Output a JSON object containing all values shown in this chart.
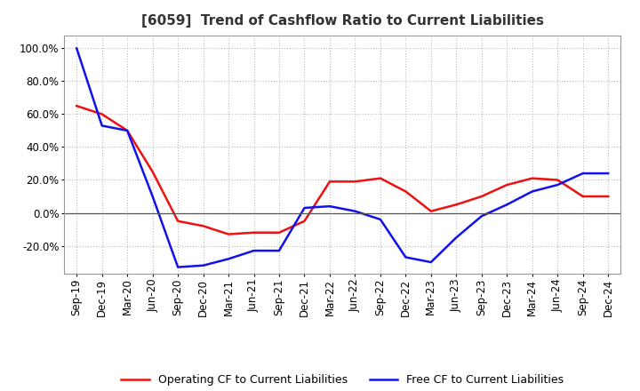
{
  "title": "[6059]  Trend of Cashflow Ratio to Current Liabilities",
  "x_labels": [
    "Sep-19",
    "Dec-19",
    "Mar-20",
    "Jun-20",
    "Sep-20",
    "Dec-20",
    "Mar-21",
    "Jun-21",
    "Sep-21",
    "Dec-21",
    "Mar-22",
    "Jun-22",
    "Sep-22",
    "Dec-22",
    "Mar-23",
    "Jun-23",
    "Sep-23",
    "Dec-23",
    "Mar-24",
    "Jun-24",
    "Sep-24",
    "Dec-24"
  ],
  "operating_cf": [
    0.65,
    0.6,
    0.5,
    0.25,
    -0.05,
    -0.08,
    -0.13,
    -0.12,
    -0.12,
    -0.05,
    0.19,
    0.19,
    0.21,
    0.13,
    0.01,
    0.05,
    0.1,
    0.17,
    0.21,
    0.2,
    0.1,
    0.1
  ],
  "free_cf": [
    1.0,
    0.53,
    0.5,
    0.1,
    -0.33,
    -0.32,
    -0.28,
    -0.23,
    -0.23,
    0.03,
    0.04,
    0.01,
    -0.04,
    -0.27,
    -0.3,
    -0.15,
    -0.02,
    0.05,
    0.13,
    0.17,
    0.24,
    0.24
  ],
  "operating_color": "#ee1111",
  "free_color": "#1111ee",
  "background_color": "#ffffff",
  "grid_color": "#aaaaaa",
  "ylim": [
    -0.37,
    1.08
  ],
  "yticks": [
    -0.2,
    0.0,
    0.2,
    0.4,
    0.6,
    0.8,
    1.0
  ],
  "legend_op": "Operating CF to Current Liabilities",
  "legend_free": "Free CF to Current Liabilities",
  "title_fontsize": 11,
  "tick_fontsize": 8.5,
  "legend_fontsize": 9
}
